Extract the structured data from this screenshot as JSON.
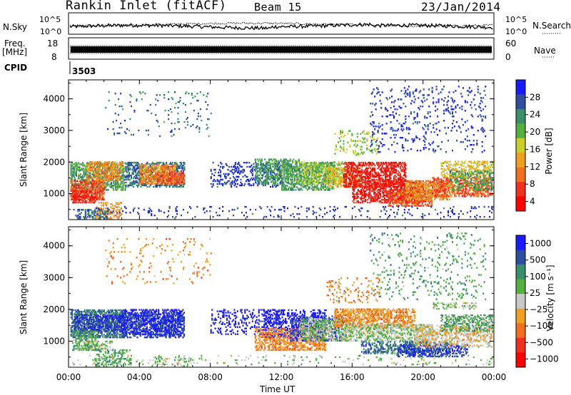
{
  "header": {
    "station": "Rankin Inlet (fitACF)",
    "beam": "Beam 15",
    "date": "23/Jan/2014"
  },
  "top_panels": {
    "nsky_label": "N.Sky",
    "nsky_ticks": [
      "10^5",
      "10^0"
    ],
    "nsearch_label": "N.Search",
    "nsearch_ticks": [
      "10^5",
      "10^0"
    ],
    "freq_label": "Freq.",
    "freq_unit": "[MHz]",
    "freq_ticks": [
      "18",
      "8"
    ],
    "nave_label": "Nave",
    "nave_ticks": [
      "60",
      "0"
    ],
    "cpid_label": "CPID",
    "cpid_value": "3503"
  },
  "colors": {
    "power": [
      "#1a1aff",
      "#2f4f9e",
      "#3a8f6a",
      "#55b040",
      "#c8d028",
      "#f0a020",
      "#f07020",
      "#f03020",
      "#ff0000"
    ],
    "velocity": [
      "#1a1aff",
      "#2f4f9e",
      "#3a8f6a",
      "#55b040",
      "#c8c8c8",
      "#f0a020",
      "#f07020",
      "#f03020",
      "#ff0000"
    ]
  },
  "chart_data": [
    {
      "type": "heatmap",
      "name": "power",
      "ylabel": "Slant Range [km]",
      "xlabel": "",
      "yticks": [
        1000,
        2000,
        3000,
        4000
      ],
      "ylim": [
        180,
        4600
      ],
      "xlim": [
        0,
        24
      ],
      "colorbar": {
        "label": "Power [dB]",
        "ticks": [
          "28",
          "24",
          "20",
          "16",
          "12",
          "8",
          "4"
        ],
        "range": [
          0,
          30
        ]
      }
    },
    {
      "type": "heatmap",
      "name": "velocity",
      "ylabel": "Slant Range [km]",
      "xlabel": "Time UT",
      "yticks": [
        1000,
        2000,
        3000,
        4000
      ],
      "ylim": [
        180,
        4600
      ],
      "xlim": [
        0,
        24
      ],
      "xtick_labels": [
        "00:00",
        "04:00",
        "08:00",
        "12:00",
        "16:00",
        "20:00",
        "00:00"
      ],
      "colorbar": {
        "label": "Velocity [m s⁻¹]",
        "ticks": [
          "1000",
          "500",
          "100",
          "25",
          "−25",
          "−100",
          "−500",
          "−1000"
        ]
      }
    }
  ]
}
